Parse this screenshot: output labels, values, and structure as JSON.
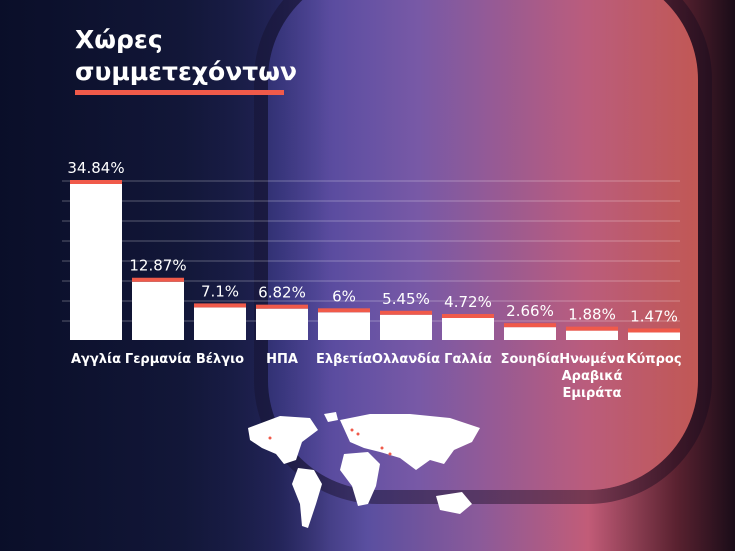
{
  "title_line1": "Χώρες",
  "title_line2": "συμμετεχόντων",
  "colors": {
    "bar": "#ffffff",
    "bar_cap": "#f05a4a",
    "accent": "#f05a4a"
  },
  "chart_data": {
    "type": "bar",
    "categories": [
      "Αγγλία",
      "Γερμανία",
      "Βέλγιο",
      "ΗΠΑ",
      "Ελβετία",
      "Ολλανδία",
      "Γαλλία",
      "Σουηδία",
      "Ηνωμένα Αραβικά Εμιράτα",
      "Κύπρος"
    ],
    "category_lines": [
      [
        "Αγγλία"
      ],
      [
        "Γερμανία"
      ],
      [
        "Βέλγιο"
      ],
      [
        "ΗΠΑ"
      ],
      [
        "Ελβετία"
      ],
      [
        "Ολλανδία"
      ],
      [
        "Γαλλία"
      ],
      [
        "Σουηδία"
      ],
      [
        "Ηνωμένα",
        "Αραβικά",
        "Εμιράτα"
      ],
      [
        "Κύπρος"
      ]
    ],
    "values": [
      34.84,
      12.87,
      7.1,
      6.82,
      6,
      5.45,
      4.72,
      2.66,
      1.88,
      1.47
    ],
    "data_labels": [
      "34.84%",
      "12.87%",
      "7.1%",
      "6.82%",
      "6%",
      "5.45%",
      "4.72%",
      "2.66%",
      "1.88%",
      "1.47%"
    ],
    "unit": "%",
    "grid": true
  }
}
